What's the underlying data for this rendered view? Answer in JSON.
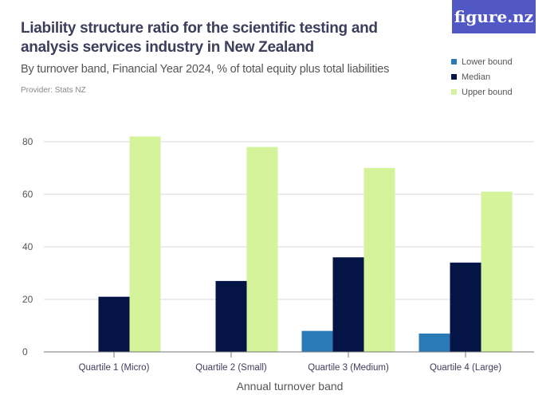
{
  "header": {
    "title": "Liability structure ratio for the scientific testing and analysis services industry in New Zealand",
    "subtitle": "By turnover band, Financial Year 2024, % of total equity plus total liabilities",
    "provider": "Provider: Stats NZ",
    "logo": "figure.nz"
  },
  "colors": {
    "lower": "#2a7ab8",
    "median": "#041445",
    "upper": "#d4f39a",
    "brand": "#5157c4"
  },
  "chart_data": {
    "type": "bar",
    "title": "Liability structure ratio for the scientific testing and analysis services industry in New Zealand",
    "subtitle": "By turnover band, Financial Year 2024, % of total equity plus total liabilities",
    "xlabel": "Annual turnover band",
    "ylabel": "",
    "categories": [
      "Quartile 1 (Micro)",
      "Quartile 2 (Small)",
      "Quartile 3 (Medium)",
      "Quartile 4 (Large)"
    ],
    "series": [
      {
        "name": "Lower bound",
        "values": [
          null,
          null,
          8,
          7
        ]
      },
      {
        "name": "Median",
        "values": [
          21,
          27,
          36,
          34
        ]
      },
      {
        "name": "Upper bound",
        "values": [
          82,
          78,
          70,
          61
        ]
      }
    ],
    "ylim": [
      0,
      82
    ],
    "yticks": [
      0,
      20,
      40,
      60,
      80
    ],
    "grid": true,
    "legend": "top-right"
  }
}
